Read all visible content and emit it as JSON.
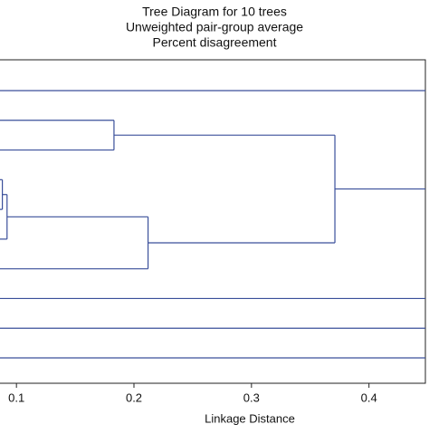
{
  "chart_data": {
    "type": "dendrogram",
    "title": [
      "Tree Diagram for 10  trees",
      "Unweighted pair-group average",
      "Percent disagreement"
    ],
    "xlabel": "Linkage Distance",
    "leaf_count": 10,
    "merges": [
      [
        3,
        4,
        0.088
      ],
      [
        10,
        5,
        0.092
      ],
      [
        11,
        6,
        0.212
      ],
      [
        1,
        2,
        0.183
      ],
      [
        13,
        12,
        0.371
      ]
    ],
    "xlim": [
      0.086,
      0.448
    ],
    "xticks": [
      0.1,
      0.2,
      0.3,
      0.4
    ],
    "color": "#3a4f9a"
  }
}
